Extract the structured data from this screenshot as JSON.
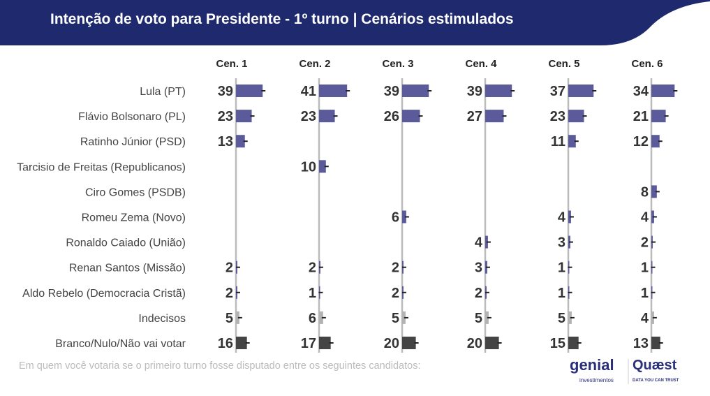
{
  "title": "Intenção de voto para Presidente - 1º turno | Cenários estimulados",
  "footnote": "Em quem você votaria se o primeiro turno fosse disputado entre os seguintes candidatos:",
  "logos": {
    "left": "genial investimentos",
    "right": "Quæst",
    "right_tagline": "DATA YOU CAN TRUST"
  },
  "colors": {
    "banner": "#1f2a6e",
    "candidate": "#5b5b9c",
    "undecided": "#b3b3b3",
    "blank": "#444444"
  },
  "chart_data": {
    "type": "bar",
    "orientation": "horizontal",
    "scenarios": [
      "Cen. 1",
      "Cen. 2",
      "Cen. 3",
      "Cen. 4",
      "Cen. 5",
      "Cen. 6"
    ],
    "categories": [
      "Lula (PT)",
      "Flávio Bolsonaro (PL)",
      "Ratinho Júnior (PSD)",
      "Tarcisio de Freitas (Republicanos)",
      "Ciro Gomes (PSDB)",
      "Romeu Zema (Novo)",
      "Ronaldo Caiado (União)",
      "Renan Santos (Missão)",
      "Aldo Rebelo (Democracia Cristã)",
      "Indecisos",
      "Branco/Nulo/Não vai votar"
    ],
    "series": [
      {
        "name": "Cen. 1",
        "values": [
          39,
          23,
          13,
          null,
          null,
          null,
          null,
          2,
          2,
          5,
          16
        ]
      },
      {
        "name": "Cen. 2",
        "values": [
          41,
          23,
          null,
          10,
          null,
          null,
          null,
          2,
          1,
          6,
          17
        ]
      },
      {
        "name": "Cen. 3",
        "values": [
          39,
          26,
          null,
          null,
          null,
          6,
          null,
          2,
          2,
          5,
          20
        ]
      },
      {
        "name": "Cen. 4",
        "values": [
          39,
          27,
          null,
          null,
          null,
          null,
          4,
          3,
          2,
          5,
          20
        ]
      },
      {
        "name": "Cen. 5",
        "values": [
          37,
          23,
          11,
          null,
          null,
          4,
          3,
          1,
          1,
          5,
          15
        ]
      },
      {
        "name": "Cen. 6",
        "values": [
          34,
          21,
          12,
          null,
          8,
          4,
          2,
          1,
          1,
          4,
          13
        ]
      }
    ]
  }
}
